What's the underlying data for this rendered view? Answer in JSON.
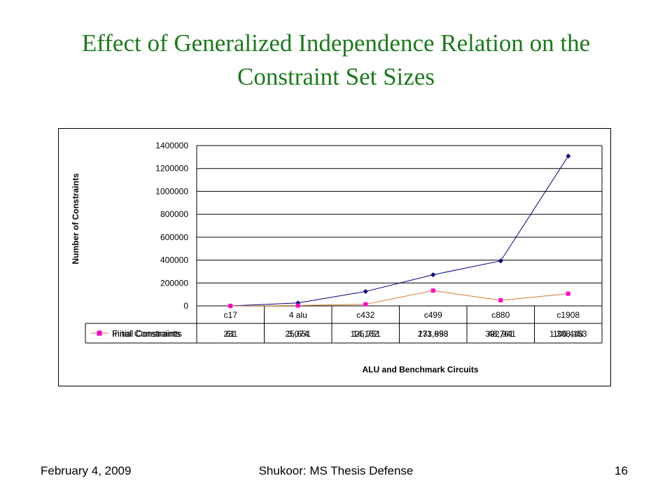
{
  "slide": {
    "title_line1": "Effect of Generalized Independence Relation on the",
    "title_line2": "Constraint Set Sizes"
  },
  "footer": {
    "date": "February 4, 2009",
    "center": "Shukoor: MS Thesis Defense",
    "page": "16"
  },
  "chart_data": {
    "type": "line",
    "categories": [
      "c17",
      "4 alu",
      "c432",
      "c499",
      "c880",
      "c1908"
    ],
    "series": [
      {
        "name": "Initial Constraints",
        "values": [
          231,
          25651,
          125751,
          271953,
          392941,
          1308153
        ],
        "labels": [
          "231",
          "25,651",
          "125,751",
          "271,953",
          "392,941",
          "1,308,153"
        ],
        "color": "#000080",
        "marker": "diamond"
      },
      {
        "name": "Final Constraints",
        "values": [
          61,
          3074,
          14162,
          133698,
          48761,
          106448
        ],
        "labels": [
          "61",
          "3,074",
          "14,162",
          "133,698",
          "48,761",
          "106,448"
        ],
        "color": "#cc7a29",
        "marker_color": "#ff00cc",
        "marker": "square"
      }
    ],
    "yticks": [
      "0",
      "200000",
      "400000",
      "600000",
      "800000",
      "1000000",
      "1200000",
      "1400000"
    ],
    "ylim": [
      0,
      1400000
    ],
    "ylabel": "Number of Constraints",
    "xlabel": "ALU and Benchmark Circuits",
    "grid": true,
    "legend": "data-table"
  }
}
